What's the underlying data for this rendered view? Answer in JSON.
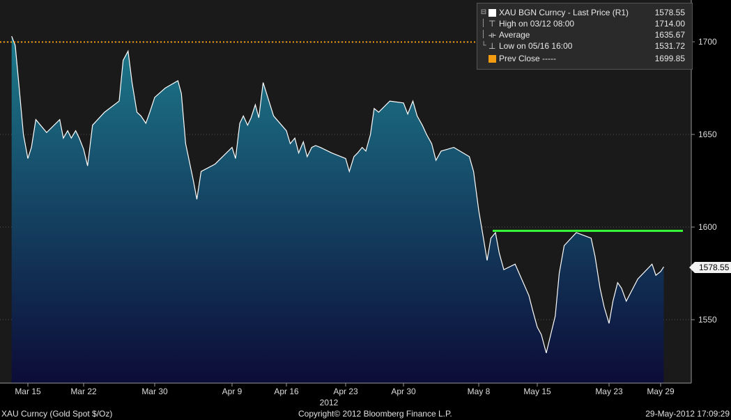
{
  "chart_data": {
    "type": "area",
    "ticker": "XAU BGN Curncy",
    "y_axis_side": "right",
    "ylim": [
      1520,
      1720
    ],
    "yticks": [
      1550,
      1600,
      1650,
      1700
    ],
    "xlabel": "2012",
    "x_ticks": [
      "Mar 15",
      "Mar 22",
      "Mar 30",
      "Apr 9",
      "Apr 16",
      "Apr 23",
      "Apr 30",
      "May 8",
      "May 15",
      "May 23",
      "May 29"
    ],
    "series": [
      {
        "name": "XAU BGN Curncy - Last Price (R1)",
        "points": [
          [
            "Mar 13",
            1703
          ],
          [
            "Mar 13",
            1698
          ],
          [
            "Mar 14",
            1672
          ],
          [
            "Mar 14",
            1650
          ],
          [
            "Mar 15",
            1637
          ],
          [
            "Mar 15",
            1643
          ],
          [
            "Mar 16",
            1658
          ],
          [
            "Mar 16",
            1651
          ],
          [
            "Mar 19",
            1658
          ],
          [
            "Mar 19",
            1648
          ],
          [
            "Mar 20",
            1652
          ],
          [
            "Mar 20",
            1648
          ],
          [
            "Mar 21",
            1652
          ],
          [
            "Mar 21",
            1648
          ],
          [
            "Mar 22",
            1642
          ],
          [
            "Mar 22",
            1633
          ],
          [
            "Mar 23",
            1655
          ],
          [
            "Mar 23",
            1662
          ],
          [
            "Mar 26",
            1668
          ],
          [
            "Mar 26",
            1690
          ],
          [
            "Mar 27",
            1695
          ],
          [
            "Mar 27",
            1678
          ],
          [
            "Mar 28",
            1662
          ],
          [
            "Mar 28",
            1660
          ],
          [
            "Mar 29",
            1656
          ],
          [
            "Mar 29",
            1662
          ],
          [
            "Mar 30",
            1670
          ],
          [
            "Mar 30",
            1675
          ],
          [
            "Apr 2",
            1679
          ],
          [
            "Apr 2",
            1672
          ],
          [
            "Apr 3",
            1645
          ],
          [
            "Apr 4",
            1625
          ],
          [
            "Apr 4",
            1615
          ],
          [
            "Apr 5",
            1630
          ],
          [
            "Apr 5",
            1634
          ],
          [
            "Apr 9",
            1643
          ],
          [
            "Apr 9",
            1637
          ],
          [
            "Apr 10",
            1656
          ],
          [
            "Apr 10",
            1660
          ],
          [
            "Apr 11",
            1655
          ],
          [
            "Apr 11",
            1659
          ],
          [
            "Apr 12",
            1666
          ],
          [
            "Apr 12",
            1659
          ],
          [
            "Apr 13",
            1678
          ],
          [
            "Apr 13",
            1660
          ],
          [
            "Apr 16",
            1652
          ],
          [
            "Apr 16",
            1645
          ],
          [
            "Apr 17",
            1648
          ],
          [
            "Apr 17",
            1640
          ],
          [
            "Apr 18",
            1646
          ],
          [
            "Apr 18",
            1638
          ],
          [
            "Apr 19",
            1643
          ],
          [
            "Apr 19",
            1644
          ],
          [
            "Apr 20",
            1643
          ],
          [
            "Apr 20",
            1640
          ],
          [
            "Apr 23",
            1637
          ],
          [
            "Apr 23",
            1630
          ],
          [
            "Apr 24",
            1638
          ],
          [
            "Apr 24",
            1640
          ],
          [
            "Apr 25",
            1643
          ],
          [
            "Apr 25",
            1641
          ],
          [
            "Apr 26",
            1650
          ],
          [
            "Apr 26",
            1664
          ],
          [
            "Apr 27",
            1662
          ],
          [
            "Apr 27",
            1668
          ],
          [
            "Apr 30",
            1667
          ],
          [
            "Apr 30",
            1661
          ],
          [
            "May 1",
            1668
          ],
          [
            "May 1",
            1660
          ],
          [
            "May 2",
            1655
          ],
          [
            "May 2",
            1650
          ],
          [
            "May 3",
            1645
          ],
          [
            "May 3",
            1636
          ],
          [
            "May 4",
            1641
          ],
          [
            "May 4",
            1643
          ],
          [
            "May 7",
            1638
          ],
          [
            "May 7",
            1630
          ],
          [
            "May 8",
            1609
          ],
          [
            "May 8",
            1597
          ],
          [
            "May 9",
            1582
          ],
          [
            "May 9",
            1594
          ],
          [
            "May 10",
            1597
          ],
          [
            "May 10",
            1586
          ],
          [
            "May 11",
            1577
          ],
          [
            "May 11",
            1580
          ],
          [
            "May 14",
            1563
          ],
          [
            "May 14",
            1555
          ],
          [
            "May 15",
            1546
          ],
          [
            "May 15",
            1542
          ],
          [
            "May 16",
            1532
          ],
          [
            "May 16",
            1541
          ],
          [
            "May 17",
            1552
          ],
          [
            "May 17",
            1575
          ],
          [
            "May 18",
            1590
          ],
          [
            "May 18",
            1597
          ],
          [
            "May 21",
            1594
          ],
          [
            "May 21",
            1584
          ],
          [
            "May 22",
            1567
          ],
          [
            "May 22",
            1557
          ],
          [
            "May 23",
            1548
          ],
          [
            "May 23",
            1560
          ],
          [
            "May 24",
            1570
          ],
          [
            "May 24",
            1567
          ],
          [
            "May 25",
            1560
          ],
          [
            "May 25",
            1572
          ],
          [
            "May 28",
            1580
          ],
          [
            "May 28",
            1574
          ],
          [
            "May 29",
            1576
          ],
          [
            "May 29",
            1578.55
          ]
        ]
      }
    ],
    "last_price_tag": "1578.55",
    "prev_close": 1699.85,
    "horizontal_line_level": 1598
  },
  "legend": {
    "rows": [
      {
        "label": "XAU BGN Curncy - Last Price (R1)",
        "value": "1578.55",
        "icon": "white-square-icon"
      },
      {
        "label": "High on 03/12 08:00",
        "value": "1714.00",
        "icon": "high-marker-icon"
      },
      {
        "label": "Average",
        "value": "1635.67",
        "icon": "average-marker-icon"
      },
      {
        "label": "Low on 05/16 16:00",
        "value": "1531.72",
        "icon": "low-marker-icon"
      },
      {
        "label": "Prev Close -----",
        "value": "1699.85",
        "icon": "orange-square-icon"
      }
    ]
  },
  "footer": {
    "left": "XAU Curncy (Gold Spot   $/Oz)",
    "center": "Copyright© 2012 Bloomberg Finance L.P.",
    "right": "29-May-2012 17:09:29"
  },
  "colors": {
    "area_top": "#1d7a8c",
    "area_bottom": "#0c0c38",
    "price_line": "#ffffff",
    "prev_close_line": "#f39c12",
    "level_line": "#39ff3a",
    "background": "#000000"
  }
}
